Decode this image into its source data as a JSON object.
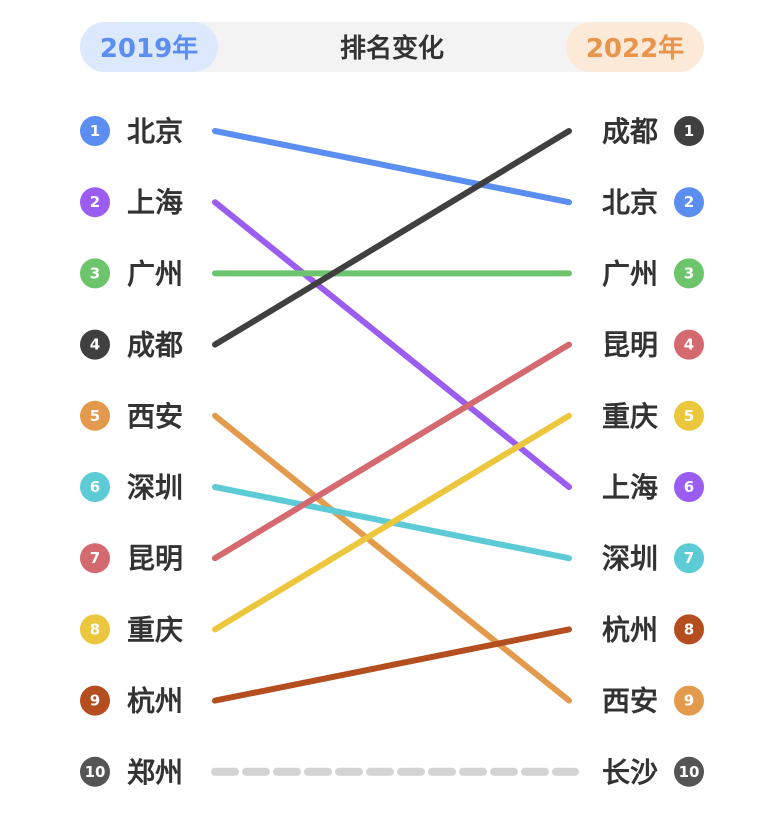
{
  "header": {
    "left_year": "2019年",
    "title": "排名变化",
    "right_year": "2022年"
  },
  "chart_data": {
    "type": "line",
    "title": "排名变化",
    "start_label": "2019年",
    "end_label": "2022年",
    "ranks": [
      1,
      2,
      3,
      4,
      5,
      6,
      7,
      8,
      9,
      10
    ],
    "rankings_2019": [
      "北京",
      "上海",
      "广州",
      "成都",
      "西安",
      "深圳",
      "昆明",
      "重庆",
      "杭州",
      "郑州"
    ],
    "rankings_2022": [
      "成都",
      "北京",
      "广州",
      "昆明",
      "重庆",
      "上海",
      "深圳",
      "杭州",
      "西安",
      "长沙"
    ],
    "series": [
      {
        "name": "北京",
        "values": [
          1,
          2
        ],
        "color": "#5b8ef0"
      },
      {
        "name": "上海",
        "values": [
          2,
          6
        ],
        "color": "#9b5cf0"
      },
      {
        "name": "广州",
        "values": [
          3,
          3
        ],
        "color": "#6cc46c"
      },
      {
        "name": "成都",
        "values": [
          4,
          1
        ],
        "color": "#404040"
      },
      {
        "name": "西安",
        "values": [
          5,
          9
        ],
        "color": "#e39a4c"
      },
      {
        "name": "深圳",
        "values": [
          6,
          7
        ],
        "color": "#5ccbd6"
      },
      {
        "name": "昆明",
        "values": [
          7,
          4
        ],
        "color": "#d4696f"
      },
      {
        "name": "重庆",
        "values": [
          8,
          5
        ],
        "color": "#ecc63c"
      },
      {
        "name": "杭州",
        "values": [
          9,
          8
        ],
        "color": "#b54e1f"
      },
      {
        "name": "郑州",
        "values": [
          10,
          null
        ],
        "color": "#555555"
      },
      {
        "name": "长沙",
        "values": [
          null,
          10
        ],
        "color": "#555555"
      }
    ],
    "no_change_connector_color": "#d3d3d3"
  }
}
